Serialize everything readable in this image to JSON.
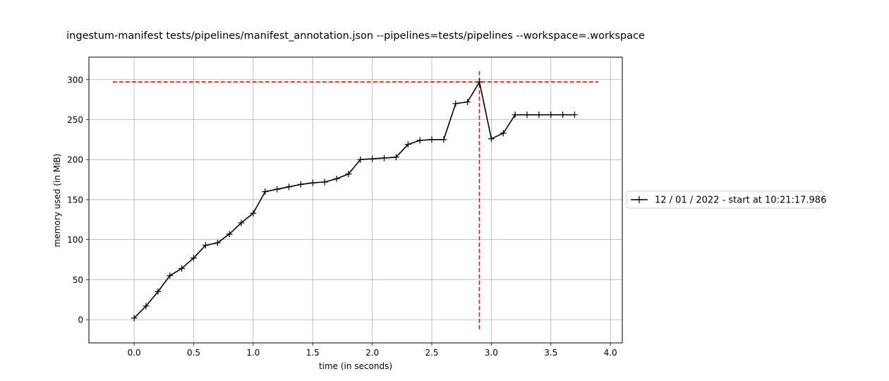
{
  "chart_data": {
    "type": "line",
    "title": "ingestum-manifest tests/pipelines/manifest_annotation.json --pipelines=tests/pipelines --workspace=.workspace",
    "xlabel": "time (in seconds)",
    "ylabel": "memory used (in MiB)",
    "xlim": [
      -0.38,
      4.1
    ],
    "ylim": [
      -29,
      328
    ],
    "xticks": [
      0.0,
      0.5,
      1.0,
      1.5,
      2.0,
      2.5,
      3.0,
      3.5,
      4.0
    ],
    "xtick_labels": [
      "0.0",
      "0.5",
      "1.0",
      "1.5",
      "2.0",
      "2.5",
      "3.0",
      "3.5",
      "4.0"
    ],
    "yticks": [
      0,
      50,
      100,
      150,
      200,
      250,
      300
    ],
    "ytick_labels": [
      "0",
      "50",
      "100",
      "150",
      "200",
      "250",
      "300"
    ],
    "grid": true,
    "legend_position": "center-right outside",
    "series": [
      {
        "name": "12 / 01 / 2022 - start at 10:21:17.986",
        "color": "#000000",
        "marker": "+",
        "x": [
          0.0,
          0.1,
          0.2,
          0.3,
          0.4,
          0.5,
          0.6,
          0.7,
          0.8,
          0.9,
          1.0,
          1.1,
          1.2,
          1.3,
          1.4,
          1.5,
          1.6,
          1.7,
          1.8,
          1.9,
          2.0,
          2.1,
          2.2,
          2.3,
          2.4,
          2.5,
          2.6,
          2.7,
          2.8,
          2.9,
          3.0,
          3.1,
          3.2,
          3.3,
          3.4,
          3.5,
          3.6,
          3.7
        ],
        "y": [
          2,
          17,
          35,
          55,
          64,
          77,
          93,
          96,
          107,
          121,
          133,
          160,
          163,
          166,
          169,
          171,
          172,
          176,
          182,
          200,
          201,
          202,
          203,
          219,
          224,
          225,
          225,
          270,
          272,
          297,
          226,
          233,
          256,
          256,
          256,
          256,
          256,
          256
        ]
      }
    ],
    "reference_lines": [
      {
        "orientation": "horizontal",
        "value": 297,
        "from": -0.18,
        "to": 3.9,
        "color": "#ff0000",
        "style": "dashed"
      },
      {
        "orientation": "vertical",
        "value": 2.9,
        "from": -12,
        "to": 311,
        "color": "#ff0000",
        "style": "dashed"
      }
    ]
  }
}
